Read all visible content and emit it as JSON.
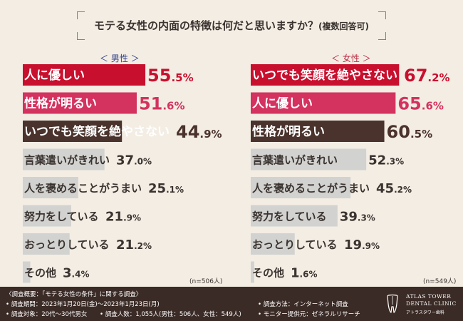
{
  "title": "モテる女性の内面の特徴は何だと思いますか？",
  "title_note": "(複数回答可)",
  "colors": {
    "top1": "#c8102e",
    "top2": "#d4325f",
    "top3": "#4a332c",
    "other": "#d2d2d0",
    "male_head": "#2e3a88",
    "female_head": "#b8283f",
    "footer_bg": "#3b2b26"
  },
  "chart_data": [
    {
      "type": "bar",
      "orientation": "horizontal",
      "title": "＜ 男性 ＞",
      "categories": [
        "人に優しい",
        "性格が明るい",
        "いつでも笑顔を絶やさない",
        "言葉遣いがきれい",
        "人を褒めることがうまい",
        "努力をしている",
        "おっとりしている",
        "その他"
      ],
      "values": [
        55.5,
        51.6,
        44.9,
        37.0,
        25.1,
        21.9,
        21.2,
        3.4
      ],
      "value_labels": [
        [
          "55",
          ".5%"
        ],
        [
          "51",
          ".6%"
        ],
        [
          "44",
          ".9%"
        ],
        [
          "37",
          ".0%"
        ],
        [
          "25",
          ".1%"
        ],
        [
          "21",
          ".9%"
        ],
        [
          "21",
          ".2%"
        ],
        [
          "3",
          ".4%"
        ]
      ],
      "n_label": "(n=506人)"
    },
    {
      "type": "bar",
      "orientation": "horizontal",
      "title": "＜ 女性 ＞",
      "categories": [
        "いつでも笑顔を絶やさない",
        "人に優しい",
        "性格が明るい",
        "言葉遣いがきれい",
        "人を褒めることがうまい",
        "努力をしている",
        "おっとりしている",
        "その他"
      ],
      "values": [
        67.2,
        65.6,
        60.5,
        52.3,
        45.2,
        39.3,
        19.9,
        1.6
      ],
      "value_labels": [
        [
          "67",
          ".2%"
        ],
        [
          "65",
          ".6%"
        ],
        [
          "60",
          ".5%"
        ],
        [
          "52",
          ".3%"
        ],
        [
          "45",
          ".2%"
        ],
        [
          "39",
          ".3%"
        ],
        [
          "19",
          ".9%"
        ],
        [
          "1",
          ".6%"
        ]
      ],
      "n_label": "(n=549人)"
    }
  ],
  "footer": {
    "line1": "〈調査概要：「モテる女性の条件」に関する調査〉",
    "line2": "• 調査期間：2023年1月20日(金)〜2023年1月23日(月)",
    "line3": "• 調査対象：20代〜30代男女",
    "line4": "• 調査人数：1,055人(男性：506人、女性：549人)",
    "line5": "• 調査方法：インターネット調査",
    "line6": "• モニター提供元：ゼネラルリサーチ"
  },
  "logo": {
    "line1": "ATLAS TOWER",
    "line2": "DENTAL CLINIC",
    "line3": "アトラスタワー歯科",
    "icon": "tooth-logo-icon"
  }
}
